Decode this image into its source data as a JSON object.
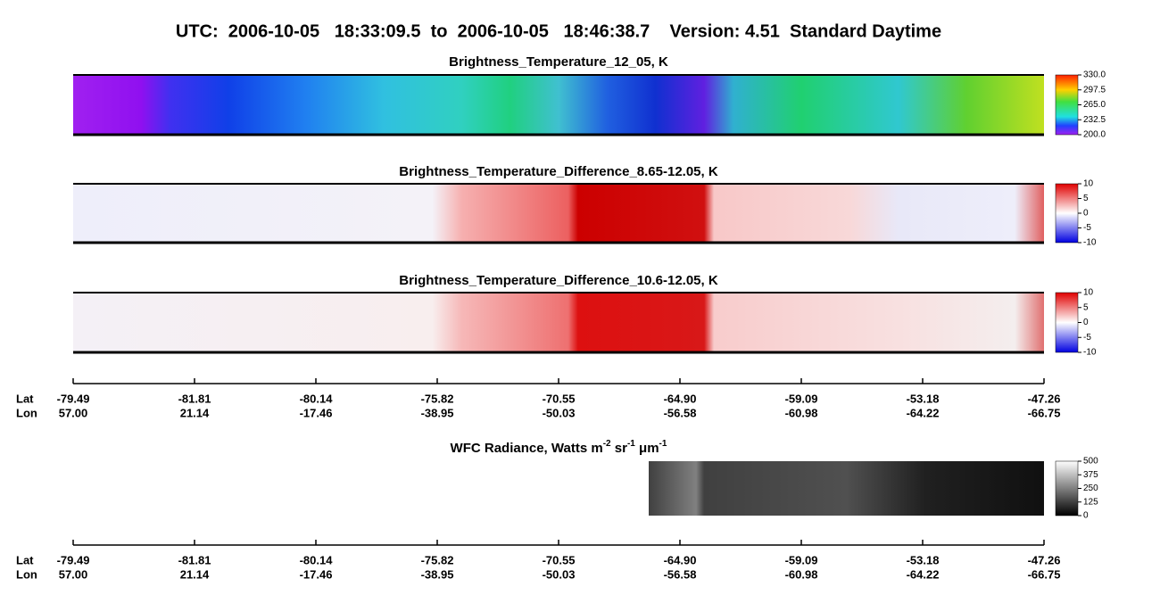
{
  "header": {
    "title": "UTC:  2006-10-05   18:33:09.5  to  2006-10-05   18:46:38.7    Version: 4.51  Standard Daytime"
  },
  "panels": [
    {
      "title": "Brightness_Temperature_12_05, K",
      "colorbar": [
        "330.0",
        "297.5",
        "265.0",
        "232.5",
        "200.0"
      ]
    },
    {
      "title": "Brightness_Temperature_Difference_8.65-12.05, K",
      "colorbar": [
        "10",
        "5",
        "0",
        "-5",
        "-10"
      ]
    },
    {
      "title": "Brightness_Temperature_Difference_10.6-12.05, K",
      "colorbar": [
        "10",
        "5",
        "0",
        "-5",
        "-10"
      ]
    },
    {
      "title_parts": [
        "WFC Radiance, Watts m",
        "-2",
        " sr",
        "-1",
        " μm",
        "-1"
      ],
      "colorbar": [
        "500",
        "375",
        "250",
        "125",
        "0"
      ]
    }
  ],
  "axes": [
    {
      "lat_label": "Lat",
      "lon_label": "Lon",
      "lat": [
        "-79.49",
        "-81.81",
        "-80.14",
        "-75.82",
        "-70.55",
        "-64.90",
        "-59.09",
        "-53.18",
        "-47.26"
      ],
      "lon": [
        "57.00",
        "21.14",
        "-17.46",
        "-38.95",
        "-50.03",
        "-56.58",
        "-60.98",
        "-64.22",
        "-66.75"
      ]
    },
    {
      "lat_label": "Lat",
      "lon_label": "Lon",
      "lat": [
        "-79.49",
        "-81.81",
        "-80.14",
        "-75.82",
        "-70.55",
        "-64.90",
        "-59.09",
        "-53.18",
        "-47.26"
      ],
      "lon": [
        "57.00",
        "21.14",
        "-17.46",
        "-38.95",
        "-50.03",
        "-56.58",
        "-60.98",
        "-64.22",
        "-66.75"
      ]
    }
  ]
}
